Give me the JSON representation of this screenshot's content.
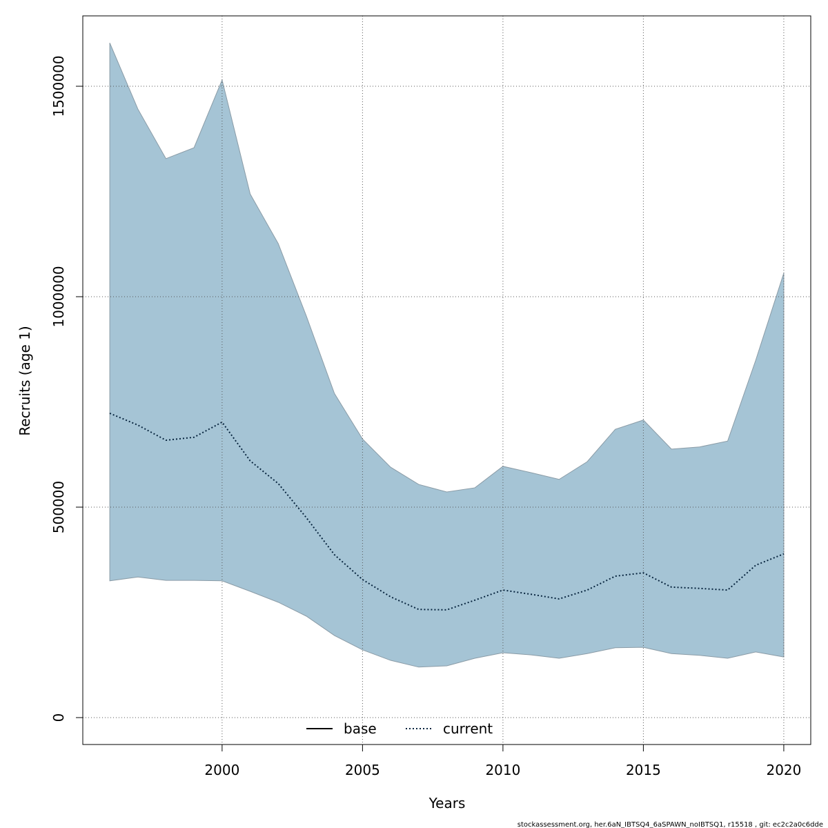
{
  "chart_data": {
    "type": "line",
    "x": [
      1996,
      1997,
      1998,
      1999,
      2000,
      2001,
      2002,
      2003,
      2004,
      2005,
      2006,
      2007,
      2008,
      2009,
      2010,
      2011,
      2012,
      2013,
      2014,
      2015,
      2016,
      2017,
      2018,
      2019,
      2020
    ],
    "band": {
      "color": "#a5c4d5",
      "stroke": "#8a9ba6",
      "upper": [
        1603000,
        1446000,
        1328000,
        1354000,
        1515000,
        1244000,
        1126000,
        954000,
        770000,
        662000,
        595000,
        554000,
        536000,
        546000,
        597000,
        582000,
        566000,
        608000,
        685000,
        707000,
        638000,
        643000,
        657000,
        849000,
        1056000
      ],
      "lower": [
        325000,
        334000,
        326000,
        326000,
        325000,
        300000,
        274000,
        241000,
        195000,
        161000,
        136000,
        120000,
        123000,
        141000,
        154000,
        149000,
        141000,
        152000,
        166000,
        167000,
        152000,
        148000,
        141000,
        156000,
        144000
      ]
    },
    "series": [
      {
        "name": "current",
        "color": "#06233d",
        "dash": "dotted",
        "values": [
          723000,
          695000,
          659000,
          666000,
          702000,
          610000,
          556000,
          475000,
          387000,
          328000,
          287000,
          257000,
          256000,
          279000,
          303000,
          293000,
          282000,
          303000,
          336000,
          344000,
          310000,
          307000,
          303000,
          362000,
          389000
        ]
      }
    ],
    "legend": [
      {
        "name": "base",
        "color": "#000000",
        "dash": "solid"
      },
      {
        "name": "current",
        "color": "#06233d",
        "dash": "dotted"
      }
    ],
    "xlabel": "Years",
    "ylabel": "Recruits (age 1)",
    "xlim": [
      1995.04,
      2020.96
    ],
    "ylim": [
      -63934,
      1667213
    ],
    "xticks": [
      2000,
      2005,
      2010,
      2015,
      2020
    ],
    "yticks": [
      0,
      500000,
      1000000,
      1500000
    ],
    "grid": true,
    "footer": "stockassessment.org, her.6aN_IBTSQ4_6aSPAWN_noIBTSQ1, r15518 , git: ec2c2a0c6dde"
  }
}
